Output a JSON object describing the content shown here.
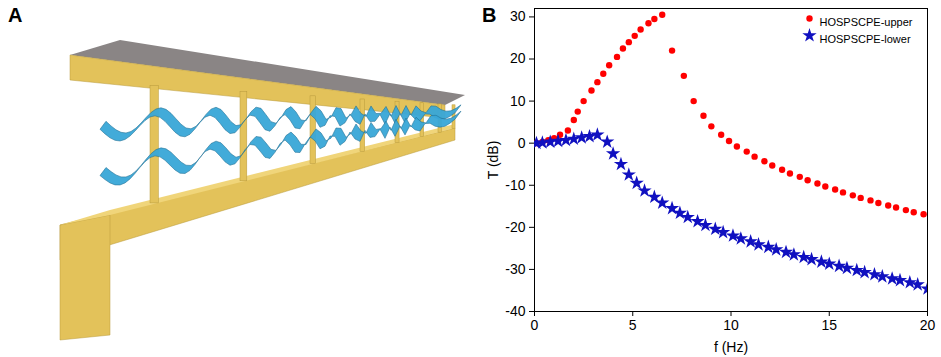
{
  "diagram": {
    "label": "A"
  },
  "chart_data": {
    "type": "scatter",
    "panel_label": "B",
    "xlabel": "f (Hz)",
    "ylabel": "T (dB)",
    "xlim": [
      0,
      20
    ],
    "xticks": [
      0,
      5,
      10,
      15,
      20
    ],
    "ylim": [
      -40,
      32
    ],
    "yticks": [
      -40,
      -30,
      -20,
      -10,
      0,
      10,
      20,
      30
    ],
    "grid": false,
    "legend": "top-right",
    "series": [
      {
        "name": "HOSPSCPE-upper",
        "color": "#ff0000",
        "marker": "circle",
        "x": [
          0.1,
          0.4,
          0.7,
          1.0,
          1.3,
          1.7,
          2.0,
          2.2,
          2.5,
          2.9,
          3.2,
          3.5,
          3.8,
          4.2,
          4.5,
          4.8,
          5.1,
          5.4,
          5.8,
          6.1,
          6.5,
          7.0,
          7.6,
          8.1,
          8.6,
          9.0,
          9.5,
          9.9,
          10.3,
          10.8,
          11.2,
          11.7,
          12.1,
          12.6,
          13.0,
          13.5,
          13.9,
          14.4,
          14.8,
          15.3,
          15.7,
          16.2,
          16.6,
          17.1,
          17.5,
          18.0,
          18.4,
          18.9,
          19.3,
          19.8
        ],
        "values": [
          0,
          0.3,
          0.7,
          1.2,
          2.0,
          3.0,
          5.5,
          7.5,
          10,
          12.5,
          14.5,
          16.5,
          18.5,
          20.5,
          22.5,
          24,
          25.5,
          27,
          28.5,
          29.5,
          30.5,
          22,
          16,
          10,
          6.5,
          4,
          2,
          0.5,
          -0.8,
          -2,
          -3.2,
          -4.3,
          -5.3,
          -6.3,
          -7.2,
          -8,
          -8.8,
          -9.6,
          -10.3,
          -11,
          -11.7,
          -12.4,
          -13,
          -13.6,
          -14.2,
          -14.8,
          -15.3,
          -15.9,
          -16.4,
          -16.9
        ]
      },
      {
        "name": "HOSPSCPE-lower",
        "color": "#1010c0",
        "marker": "star",
        "x": [
          0.1,
          0.4,
          0.8,
          1.2,
          1.6,
          2.0,
          2.4,
          2.8,
          3.2,
          3.7,
          4.0,
          4.4,
          4.8,
          5.2,
          5.6,
          6.1,
          6.5,
          7.0,
          7.4,
          7.8,
          8.3,
          8.7,
          9.2,
          9.6,
          10.1,
          10.5,
          11.0,
          11.4,
          11.9,
          12.3,
          12.8,
          13.2,
          13.7,
          14.1,
          14.6,
          15.0,
          15.5,
          15.9,
          16.4,
          16.8,
          17.3,
          17.7,
          18.2,
          18.6,
          19.1,
          19.5,
          20.0
        ],
        "values": [
          0,
          0.1,
          0.3,
          0.5,
          0.7,
          1.0,
          1.3,
          1.6,
          2.0,
          0.3,
          -2.5,
          -5,
          -7.5,
          -9.5,
          -11.3,
          -12.8,
          -14.2,
          -15.5,
          -16.6,
          -17.6,
          -18.6,
          -19.5,
          -20.4,
          -21.2,
          -22,
          -22.7,
          -23.4,
          -24.1,
          -24.7,
          -25.3,
          -25.9,
          -26.5,
          -27.1,
          -27.6,
          -28.2,
          -28.7,
          -29.2,
          -29.7,
          -30.2,
          -30.7,
          -31.2,
          -31.7,
          -32.2,
          -32.6,
          -33.1,
          -33.6,
          -34.6
        ]
      }
    ]
  }
}
